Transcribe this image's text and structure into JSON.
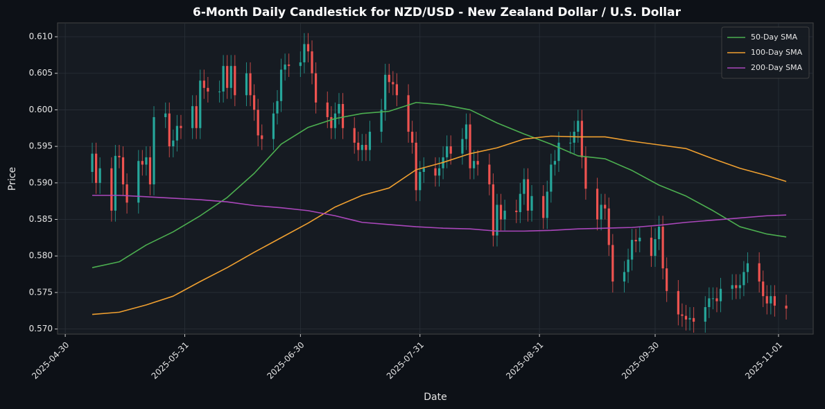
{
  "chart_data": {
    "type": "candlestick",
    "title": "6-Month Daily Candlestick for NZD/USD - New Zealand Dollar / U.S. Dollar",
    "xlabel": "Date",
    "ylabel": "Price",
    "x": [
      "2025-05-07",
      "2025-05-08",
      "2025-05-09",
      "2025-05-12",
      "2025-05-13",
      "2025-05-14",
      "2025-05-15",
      "2025-05-16",
      "2025-05-19",
      "2025-05-20",
      "2025-05-21",
      "2025-05-22",
      "2025-05-23",
      "2025-05-26",
      "2025-05-27",
      "2025-05-28",
      "2025-05-29",
      "2025-05-30",
      "2025-06-02",
      "2025-06-03",
      "2025-06-04",
      "2025-06-05",
      "2025-06-06",
      "2025-06-09",
      "2025-06-10",
      "2025-06-11",
      "2025-06-12",
      "2025-06-13",
      "2025-06-16",
      "2025-06-17",
      "2025-06-18",
      "2025-06-19",
      "2025-06-20",
      "2025-06-23",
      "2025-06-24",
      "2025-06-25",
      "2025-06-26",
      "2025-06-27",
      "2025-06-30",
      "2025-07-01",
      "2025-07-02",
      "2025-07-03",
      "2025-07-04",
      "2025-07-07",
      "2025-07-08",
      "2025-07-09",
      "2025-07-10",
      "2025-07-11",
      "2025-07-14",
      "2025-07-15",
      "2025-07-16",
      "2025-07-17",
      "2025-07-18",
      "2025-07-21",
      "2025-07-22",
      "2025-07-23",
      "2025-07-24",
      "2025-07-25",
      "2025-07-28",
      "2025-07-29",
      "2025-07-30",
      "2025-07-31",
      "2025-08-01",
      "2025-08-04",
      "2025-08-05",
      "2025-08-06",
      "2025-08-07",
      "2025-08-08",
      "2025-08-11",
      "2025-08-12",
      "2025-08-13",
      "2025-08-14",
      "2025-08-15",
      "2025-08-18",
      "2025-08-19",
      "2025-08-20",
      "2025-08-21",
      "2025-08-22",
      "2025-08-25",
      "2025-08-26",
      "2025-08-27",
      "2025-08-28",
      "2025-08-29",
      "2025-09-01",
      "2025-09-02",
      "2025-09-03",
      "2025-09-04",
      "2025-09-05",
      "2025-09-08",
      "2025-09-09",
      "2025-09-10",
      "2025-09-11",
      "2025-09-12",
      "2025-09-15",
      "2025-09-16",
      "2025-09-17",
      "2025-09-18",
      "2025-09-19",
      "2025-09-22",
      "2025-09-23",
      "2025-09-24",
      "2025-09-25",
      "2025-09-26",
      "2025-09-29",
      "2025-09-30",
      "2025-10-01",
      "2025-10-02",
      "2025-10-03",
      "2025-10-06",
      "2025-10-07",
      "2025-10-08",
      "2025-10-09",
      "2025-10-10",
      "2025-10-13",
      "2025-10-14",
      "2025-10-15",
      "2025-10-16",
      "2025-10-17",
      "2025-10-20",
      "2025-10-21",
      "2025-10-22",
      "2025-10-23",
      "2025-10-24",
      "2025-10-27",
      "2025-10-28",
      "2025-10-29",
      "2025-10-30",
      "2025-10-31",
      "2025-11-03"
    ],
    "open": [
      0.5915,
      0.594,
      0.59,
      0.592,
      0.5862,
      0.5937,
      0.5935,
      0.5898,
      0.5873,
      0.593,
      0.5925,
      0.5935,
      0.5898,
      0.599,
      0.5995,
      0.595,
      0.5958,
      0.5978,
      0.5975,
      0.6005,
      0.5975,
      0.604,
      0.603,
      0.6025,
      0.6025,
      0.606,
      0.603,
      0.606,
      0.602,
      0.605,
      0.602,
      0.6,
      0.5965,
      0.596,
      0.5995,
      0.6012,
      0.6055,
      0.6062,
      0.606,
      0.6065,
      0.609,
      0.608,
      0.605,
      0.601,
      0.599,
      0.5975,
      0.5995,
      0.6008,
      0.5975,
      0.5955,
      0.5945,
      0.5952,
      0.5945,
      0.597,
      0.6,
      0.6048,
      0.6038,
      0.6035,
      0.602,
      0.597,
      0.5955,
      0.589,
      0.5915,
      0.592,
      0.591,
      0.592,
      0.5935,
      0.595,
      0.594,
      0.596,
      0.598,
      0.592,
      0.593,
      0.5925,
      0.5898,
      0.5828,
      0.587,
      0.585,
      0.5862,
      0.586,
      0.5885,
      0.5905,
      0.5862,
      0.5882,
      0.5852,
      0.5888,
      0.5925,
      0.593,
      0.5955,
      0.5955,
      0.597,
      0.5985,
      0.5935,
      0.5892,
      0.585,
      0.587,
      0.5865,
      0.5815,
      0.5765,
      0.5778,
      0.5795,
      0.5822,
      0.582,
      0.5825,
      0.58,
      0.5823,
      0.584,
      0.5783,
      0.5752,
      0.572,
      0.5718,
      0.5713,
      0.5715,
      0.571,
      0.573,
      0.5742,
      0.5742,
      0.5738,
      0.5755,
      0.576,
      0.5756,
      0.576,
      0.5778,
      0.579,
      0.5765,
      0.5745,
      0.5735,
      0.5745,
      0.5732
    ],
    "high": [
      0.5955,
      0.5955,
      0.5935,
      0.5935,
      0.5952,
      0.5952,
      0.595,
      0.5913,
      0.5945,
      0.5945,
      0.595,
      0.595,
      0.6005,
      0.601,
      0.601,
      0.5973,
      0.5993,
      0.5993,
      0.602,
      0.602,
      0.6055,
      0.6055,
      0.6045,
      0.604,
      0.6075,
      0.6075,
      0.6075,
      0.6075,
      0.6065,
      0.6065,
      0.6035,
      0.6015,
      0.598,
      0.601,
      0.6027,
      0.607,
      0.6077,
      0.6077,
      0.608,
      0.6105,
      0.6105,
      0.6095,
      0.6065,
      0.6025,
      0.6005,
      0.601,
      0.6023,
      0.6023,
      0.599,
      0.597,
      0.5967,
      0.5967,
      0.5985,
      0.6015,
      0.6063,
      0.6063,
      0.6053,
      0.605,
      0.6035,
      0.5985,
      0.597,
      0.593,
      0.5935,
      0.5935,
      0.5935,
      0.595,
      0.5965,
      0.5965,
      0.5975,
      0.5995,
      0.5995,
      0.5945,
      0.5945,
      0.594,
      0.5913,
      0.5885,
      0.5885,
      0.5877,
      0.5877,
      0.59,
      0.592,
      0.592,
      0.5897,
      0.5897,
      0.5903,
      0.594,
      0.5945,
      0.597,
      0.597,
      0.5985,
      0.6,
      0.6,
      0.595,
      0.5907,
      0.5885,
      0.5885,
      0.588,
      0.583,
      0.5793,
      0.581,
      0.5837,
      0.5837,
      0.584,
      0.584,
      0.5838,
      0.5855,
      0.5855,
      0.5798,
      0.5767,
      0.5735,
      0.5733,
      0.573,
      0.573,
      0.5745,
      0.5757,
      0.5757,
      0.5757,
      0.577,
      0.5775,
      0.5775,
      0.5775,
      0.5793,
      0.5805,
      0.5805,
      0.578,
      0.576,
      0.576,
      0.576,
      0.5747
    ],
    "low": [
      0.59,
      0.5885,
      0.5885,
      0.5847,
      0.5847,
      0.592,
      0.5883,
      0.5858,
      0.5858,
      0.591,
      0.591,
      0.5883,
      0.5883,
      0.5975,
      0.5935,
      0.5935,
      0.5943,
      0.596,
      0.596,
      0.596,
      0.596,
      0.6015,
      0.601,
      0.601,
      0.601,
      0.6015,
      0.6015,
      0.6005,
      0.6005,
      0.6005,
      0.5985,
      0.595,
      0.5945,
      0.5945,
      0.598,
      0.5997,
      0.604,
      0.6045,
      0.6045,
      0.605,
      0.6065,
      0.6035,
      0.5995,
      0.5975,
      0.596,
      0.596,
      0.598,
      0.596,
      0.594,
      0.593,
      0.593,
      0.593,
      0.593,
      0.5955,
      0.5985,
      0.6023,
      0.602,
      0.6005,
      0.5955,
      0.594,
      0.5875,
      0.5875,
      0.59,
      0.5895,
      0.5895,
      0.5905,
      0.592,
      0.5925,
      0.5925,
      0.5945,
      0.5905,
      0.5905,
      0.591,
      0.5883,
      0.5813,
      0.5813,
      0.5835,
      0.5835,
      0.5845,
      0.5845,
      0.587,
      0.5847,
      0.5847,
      0.5837,
      0.5837,
      0.5873,
      0.591,
      0.5915,
      0.594,
      0.594,
      0.5955,
      0.592,
      0.5877,
      0.5835,
      0.5835,
      0.585,
      0.58,
      0.575,
      0.575,
      0.5763,
      0.578,
      0.5805,
      0.5805,
      0.5785,
      0.5785,
      0.5808,
      0.5768,
      0.5737,
      0.5705,
      0.5703,
      0.5698,
      0.5698,
      0.5695,
      0.5695,
      0.5715,
      0.5727,
      0.5723,
      0.5723,
      0.574,
      0.5741,
      0.5741,
      0.5745,
      0.5763,
      0.575,
      0.573,
      0.572,
      0.572,
      0.5717,
      0.5713
    ],
    "close": [
      0.594,
      0.59,
      0.592,
      0.5862,
      0.5937,
      0.5935,
      0.5898,
      0.5873,
      0.593,
      0.5925,
      0.5935,
      0.5898,
      0.599,
      0.5995,
      0.595,
      0.5958,
      0.5978,
      0.5975,
      0.6005,
      0.5975,
      0.604,
      0.603,
      0.6025,
      0.6025,
      0.606,
      0.603,
      0.606,
      0.602,
      0.605,
      0.602,
      0.6,
      0.5965,
      0.596,
      0.5995,
      0.6012,
      0.6055,
      0.6062,
      0.606,
      0.6065,
      0.609,
      0.608,
      0.605,
      0.601,
      0.599,
      0.5975,
      0.5995,
      0.6008,
      0.5975,
      0.5955,
      0.5945,
      0.5952,
      0.5945,
      0.597,
      0.6,
      0.6048,
      0.6038,
      0.6035,
      0.602,
      0.597,
      0.5955,
      0.589,
      0.5915,
      0.592,
      0.591,
      0.592,
      0.5935,
      0.595,
      0.594,
      0.596,
      0.598,
      0.592,
      0.593,
      0.5925,
      0.5898,
      0.5828,
      0.587,
      0.585,
      0.5862,
      0.586,
      0.5885,
      0.5905,
      0.5862,
      0.5882,
      0.5852,
      0.5888,
      0.5925,
      0.593,
      0.5955,
      0.5955,
      0.597,
      0.5985,
      0.5935,
      0.5892,
      0.585,
      0.587,
      0.5865,
      0.5815,
      0.5765,
      0.5778,
      0.5795,
      0.5822,
      0.582,
      0.5825,
      0.58,
      0.5823,
      0.584,
      0.5783,
      0.5752,
      0.572,
      0.5718,
      0.5713,
      0.5715,
      0.571,
      0.573,
      0.5742,
      0.5742,
      0.5738,
      0.5755,
      0.576,
      0.5756,
      0.576,
      0.5778,
      0.579,
      0.5765,
      0.5745,
      0.5735,
      0.5745,
      0.5732,
      0.5728
    ],
    "up_color": "#26a69a",
    "down_color": "#ef5350",
    "series": [
      {
        "name": "50-Day SMA",
        "color": "#4caf50",
        "x": [
          "2025-05-07",
          "2025-05-14",
          "2025-05-21",
          "2025-05-28",
          "2025-06-04",
          "2025-06-11",
          "2025-06-18",
          "2025-06-25",
          "2025-07-02",
          "2025-07-09",
          "2025-07-16",
          "2025-07-23",
          "2025-07-30",
          "2025-08-06",
          "2025-08-13",
          "2025-08-20",
          "2025-08-27",
          "2025-09-03",
          "2025-09-10",
          "2025-09-17",
          "2025-09-24",
          "2025-10-01",
          "2025-10-08",
          "2025-10-15",
          "2025-10-22",
          "2025-10-29",
          "2025-11-03"
        ],
        "values": [
          0.5784,
          0.5792,
          0.5815,
          0.5833,
          0.5855,
          0.588,
          0.5913,
          0.5953,
          0.5976,
          0.5988,
          0.5995,
          0.5998,
          0.601,
          0.6007,
          0.6,
          0.5982,
          0.5967,
          0.5953,
          0.5937,
          0.5933,
          0.5917,
          0.5897,
          0.5882,
          0.5862,
          0.584,
          0.583,
          0.5826
        ]
      },
      {
        "name": "100-Day SMA",
        "color": "#f0a030",
        "x": [
          "2025-05-07",
          "2025-05-14",
          "2025-05-21",
          "2025-05-28",
          "2025-06-04",
          "2025-06-11",
          "2025-06-18",
          "2025-06-25",
          "2025-07-02",
          "2025-07-09",
          "2025-07-16",
          "2025-07-23",
          "2025-07-30",
          "2025-08-06",
          "2025-08-13",
          "2025-08-20",
          "2025-08-27",
          "2025-09-03",
          "2025-09-10",
          "2025-09-17",
          "2025-09-24",
          "2025-10-01",
          "2025-10-08",
          "2025-10-15",
          "2025-10-22",
          "2025-10-29",
          "2025-11-03"
        ],
        "values": [
          0.572,
          0.5723,
          0.5733,
          0.5745,
          0.5765,
          0.5784,
          0.5805,
          0.5825,
          0.5845,
          0.5867,
          0.5883,
          0.5893,
          0.5918,
          0.5928,
          0.594,
          0.5948,
          0.596,
          0.5964,
          0.5963,
          0.5963,
          0.5957,
          0.5952,
          0.5947,
          0.5933,
          0.592,
          0.591,
          0.5902
        ]
      },
      {
        "name": "200-Day SMA",
        "color": "#ab47bc",
        "x": [
          "2025-05-07",
          "2025-05-14",
          "2025-05-21",
          "2025-05-28",
          "2025-06-04",
          "2025-06-11",
          "2025-06-18",
          "2025-06-25",
          "2025-07-02",
          "2025-07-09",
          "2025-07-16",
          "2025-07-23",
          "2025-07-30",
          "2025-08-06",
          "2025-08-13",
          "2025-08-20",
          "2025-08-27",
          "2025-09-03",
          "2025-09-10",
          "2025-09-17",
          "2025-09-24",
          "2025-10-01",
          "2025-10-08",
          "2025-10-15",
          "2025-10-22",
          "2025-10-29",
          "2025-11-03"
        ],
        "values": [
          0.5883,
          0.5883,
          0.5881,
          0.5879,
          0.5877,
          0.5874,
          0.5869,
          0.5866,
          0.5862,
          0.5855,
          0.5846,
          0.5843,
          0.584,
          0.5838,
          0.5837,
          0.5834,
          0.5834,
          0.5835,
          0.5837,
          0.5838,
          0.5839,
          0.5842,
          0.5846,
          0.5849,
          0.5852,
          0.5855,
          0.5856
        ]
      }
    ],
    "xlim": [
      "2025-04-28",
      "2025-11-10"
    ],
    "xticks": [
      "2025-04-30",
      "2025-05-31",
      "2025-06-30",
      "2025-07-31",
      "2025-08-31",
      "2025-09-30",
      "2025-11-01"
    ],
    "ylim": [
      0.5693,
      0.6119
    ],
    "yticks": [
      {
        "value": 0.57,
        "label": "0.570"
      },
      {
        "value": 0.575,
        "label": "0.575"
      },
      {
        "value": 0.58,
        "label": "0.580"
      },
      {
        "value": 0.585,
        "label": "0.585"
      },
      {
        "value": 0.59,
        "label": "0.590"
      },
      {
        "value": 0.595,
        "label": "0.595"
      },
      {
        "value": 0.6,
        "label": "0.600"
      },
      {
        "value": 0.605,
        "label": "0.605"
      },
      {
        "value": 0.61,
        "label": "0.610"
      }
    ],
    "grid": true,
    "legend": "upper right"
  }
}
